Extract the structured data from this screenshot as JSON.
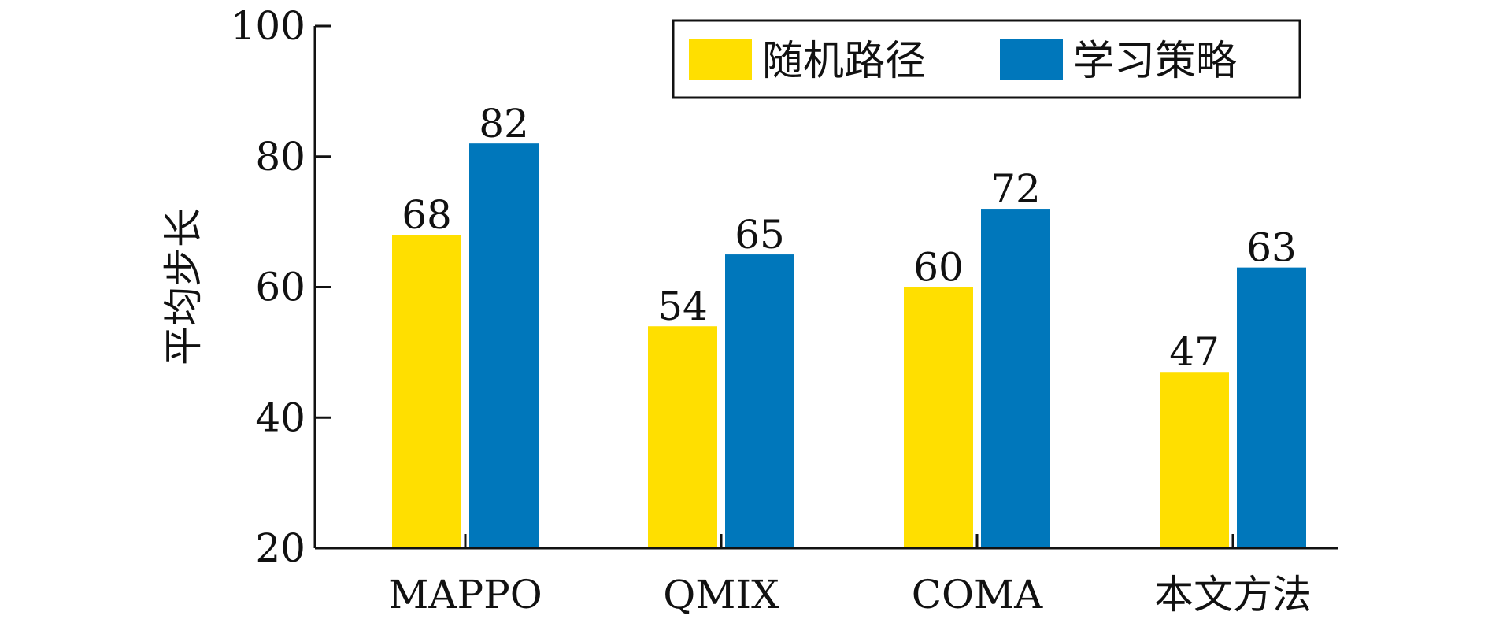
{
  "chart_data": {
    "type": "bar",
    "title": "",
    "xlabel": "",
    "ylabel": "平均步长",
    "categories": [
      "MAPPO",
      "QMIX",
      "COMA",
      "本文方法"
    ],
    "series": [
      {
        "name": "随机路径",
        "color": "#FFDF00",
        "values": [
          68,
          54,
          60,
          47
        ]
      },
      {
        "name": "学习策略",
        "color": "#0077BB",
        "values": [
          82,
          65,
          72,
          63
        ]
      }
    ],
    "ylim": [
      20,
      100
    ],
    "yticks": [
      20,
      40,
      60,
      80,
      100
    ],
    "grid": false,
    "legend_position": "top-right"
  }
}
